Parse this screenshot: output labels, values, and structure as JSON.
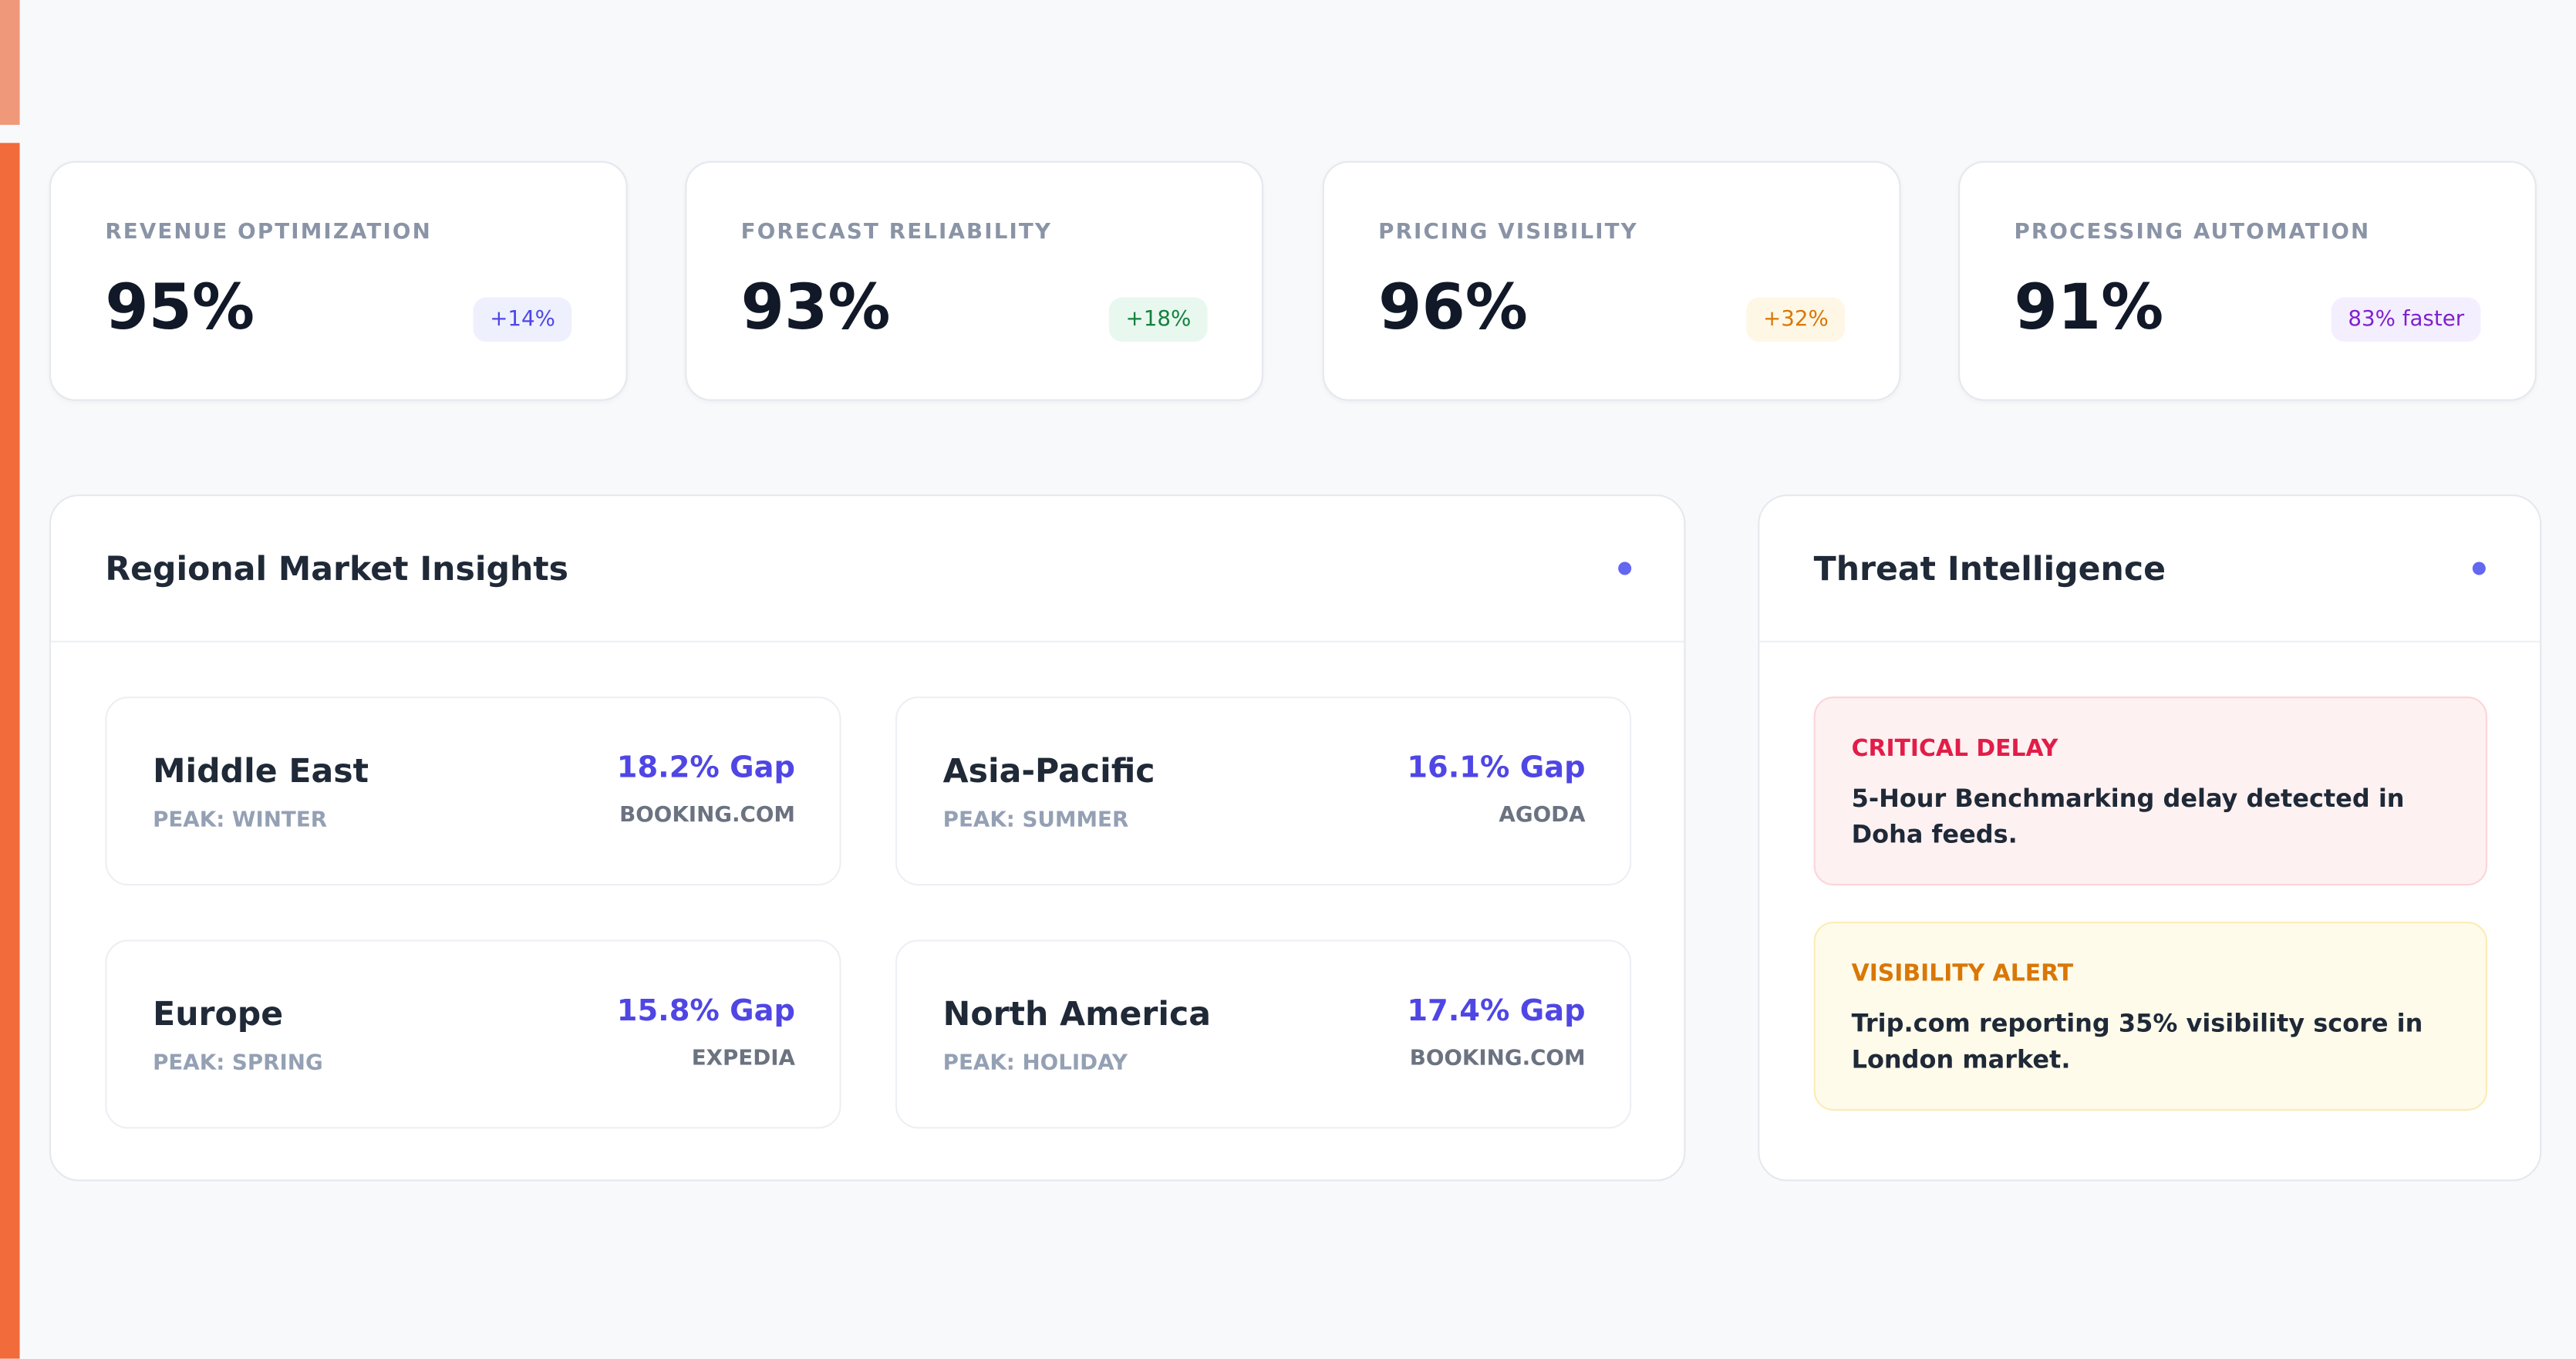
{
  "metrics": [
    {
      "label": "REVENUE OPTIMIZATION",
      "value": "95%",
      "badge": "+14%"
    },
    {
      "label": "FORECAST RELIABILITY",
      "value": "93%",
      "badge": "+18%"
    },
    {
      "label": "PRICING VISIBILITY",
      "value": "96%",
      "badge": "+32%"
    },
    {
      "label": "PROCESSING AUTOMATION",
      "value": "91%",
      "badge": "83% faster"
    }
  ],
  "regional": {
    "title": "Regional Market Insights",
    "regions": [
      {
        "name": "Middle East",
        "peak": "PEAK: WINTER",
        "gap": "18.2% Gap",
        "source": "BOOKING.COM"
      },
      {
        "name": "Asia-Pacific",
        "peak": "PEAK: SUMMER",
        "gap": "16.1% Gap",
        "source": "AGODA"
      },
      {
        "name": "Europe",
        "peak": "PEAK: SPRING",
        "gap": "15.8% Gap",
        "source": "EXPEDIA"
      },
      {
        "name": "North America",
        "peak": "PEAK: HOLIDAY",
        "gap": "17.4% Gap",
        "source": "BOOKING.COM"
      }
    ]
  },
  "threats": {
    "title": "Threat Intelligence",
    "alerts": [
      {
        "title": "CRITICAL DELAY",
        "text": "5-Hour Benchmarking delay detected in Doha feeds."
      },
      {
        "title": "VISIBILITY ALERT",
        "text": "Trip.com reporting 35% visibility score in London market."
      }
    ]
  }
}
